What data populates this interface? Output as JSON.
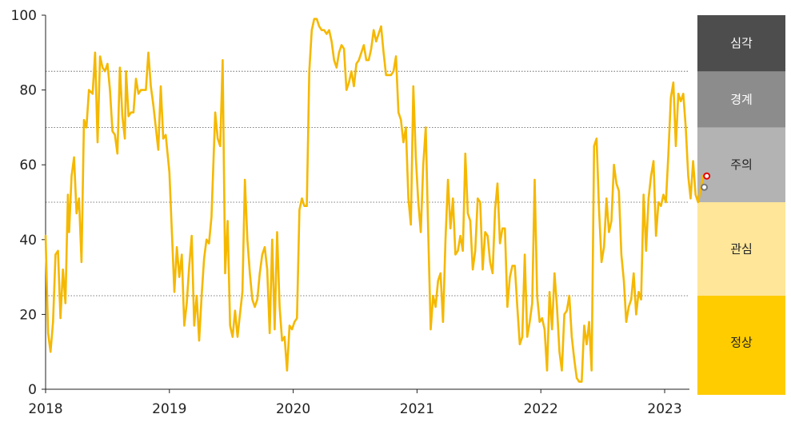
{
  "chart_data": {
    "type": "line",
    "xlim": [
      2018,
      2023.2
    ],
    "ylim": [
      0,
      100
    ],
    "y_ticks": [
      0,
      20,
      40,
      60,
      80,
      100
    ],
    "x_ticks": [
      "2018",
      "2019",
      "2020",
      "2021",
      "2022",
      "2023"
    ],
    "grid": "dotted horizontal lines at 25, 50, 70 and 85 only",
    "line_color": "#f5b800",
    "series": [
      {
        "values": [
          [
            2018.0,
            41
          ],
          [
            2018.02,
            15
          ],
          [
            2018.04,
            10
          ],
          [
            2018.06,
            18
          ],
          [
            2018.08,
            36
          ],
          [
            2018.1,
            37
          ],
          [
            2018.12,
            19
          ],
          [
            2018.14,
            32
          ],
          [
            2018.16,
            23
          ],
          [
            2018.18,
            52
          ],
          [
            2018.19,
            42
          ],
          [
            2018.21,
            57
          ],
          [
            2018.23,
            62
          ],
          [
            2018.25,
            47
          ],
          [
            2018.27,
            51
          ],
          [
            2018.29,
            34
          ],
          [
            2018.31,
            72
          ],
          [
            2018.33,
            70
          ],
          [
            2018.35,
            80
          ],
          [
            2018.38,
            79
          ],
          [
            2018.4,
            90
          ],
          [
            2018.42,
            66
          ],
          [
            2018.44,
            89
          ],
          [
            2018.46,
            86
          ],
          [
            2018.48,
            85
          ],
          [
            2018.5,
            87
          ],
          [
            2018.52,
            80
          ],
          [
            2018.54,
            69
          ],
          [
            2018.56,
            68
          ],
          [
            2018.58,
            63
          ],
          [
            2018.6,
            86
          ],
          [
            2018.62,
            73
          ],
          [
            2018.64,
            67
          ],
          [
            2018.65,
            85
          ],
          [
            2018.67,
            73
          ],
          [
            2018.69,
            74
          ],
          [
            2018.71,
            74
          ],
          [
            2018.73,
            83
          ],
          [
            2018.75,
            79
          ],
          [
            2018.77,
            80
          ],
          [
            2018.79,
            80
          ],
          [
            2018.81,
            80
          ],
          [
            2018.83,
            90
          ],
          [
            2018.85,
            81
          ],
          [
            2018.87,
            76
          ],
          [
            2018.89,
            70
          ],
          [
            2018.91,
            64
          ],
          [
            2018.93,
            81
          ],
          [
            2018.95,
            67
          ],
          [
            2018.97,
            68
          ],
          [
            2019.0,
            58
          ],
          [
            2019.02,
            42
          ],
          [
            2019.04,
            26
          ],
          [
            2019.06,
            38
          ],
          [
            2019.08,
            30
          ],
          [
            2019.1,
            36
          ],
          [
            2019.12,
            17
          ],
          [
            2019.14,
            23
          ],
          [
            2019.16,
            33
          ],
          [
            2019.18,
            41
          ],
          [
            2019.2,
            17
          ],
          [
            2019.22,
            25
          ],
          [
            2019.24,
            13
          ],
          [
            2019.26,
            25
          ],
          [
            2019.28,
            35
          ],
          [
            2019.3,
            40
          ],
          [
            2019.32,
            39
          ],
          [
            2019.34,
            46
          ],
          [
            2019.37,
            74
          ],
          [
            2019.39,
            67
          ],
          [
            2019.41,
            65
          ],
          [
            2019.43,
            88
          ],
          [
            2019.45,
            31
          ],
          [
            2019.47,
            45
          ],
          [
            2019.49,
            17
          ],
          [
            2019.51,
            14
          ],
          [
            2019.53,
            21
          ],
          [
            2019.55,
            14
          ],
          [
            2019.57,
            20
          ],
          [
            2019.59,
            26
          ],
          [
            2019.61,
            56
          ],
          [
            2019.63,
            40
          ],
          [
            2019.65,
            31
          ],
          [
            2019.67,
            24
          ],
          [
            2019.69,
            22
          ],
          [
            2019.71,
            24
          ],
          [
            2019.73,
            31
          ],
          [
            2019.75,
            36
          ],
          [
            2019.77,
            38
          ],
          [
            2019.79,
            32
          ],
          [
            2019.81,
            15
          ],
          [
            2019.83,
            40
          ],
          [
            2019.85,
            16
          ],
          [
            2019.87,
            42
          ],
          [
            2019.89,
            22
          ],
          [
            2019.91,
            13
          ],
          [
            2019.93,
            14
          ],
          [
            2019.95,
            5
          ],
          [
            2019.97,
            17
          ],
          [
            2019.99,
            16
          ],
          [
            2020.01,
            18
          ],
          [
            2020.03,
            19
          ],
          [
            2020.05,
            48
          ],
          [
            2020.07,
            51
          ],
          [
            2020.09,
            49
          ],
          [
            2020.11,
            49
          ],
          [
            2020.13,
            85
          ],
          [
            2020.15,
            96
          ],
          [
            2020.17,
            99
          ],
          [
            2020.19,
            99
          ],
          [
            2020.21,
            97
          ],
          [
            2020.23,
            96
          ],
          [
            2020.25,
            96
          ],
          [
            2020.27,
            95
          ],
          [
            2020.29,
            96
          ],
          [
            2020.31,
            93
          ],
          [
            2020.33,
            88
          ],
          [
            2020.35,
            86
          ],
          [
            2020.37,
            90
          ],
          [
            2020.39,
            92
          ],
          [
            2020.41,
            91
          ],
          [
            2020.43,
            80
          ],
          [
            2020.45,
            82
          ],
          [
            2020.47,
            85
          ],
          [
            2020.49,
            81
          ],
          [
            2020.51,
            87
          ],
          [
            2020.53,
            88
          ],
          [
            2020.55,
            90
          ],
          [
            2020.57,
            92
          ],
          [
            2020.59,
            88
          ],
          [
            2020.61,
            88
          ],
          [
            2020.63,
            91
          ],
          [
            2020.65,
            96
          ],
          [
            2020.67,
            93
          ],
          [
            2020.69,
            95
          ],
          [
            2020.71,
            97
          ],
          [
            2020.73,
            90
          ],
          [
            2020.75,
            84
          ],
          [
            2020.77,
            84
          ],
          [
            2020.79,
            84
          ],
          [
            2020.81,
            85
          ],
          [
            2020.83,
            89
          ],
          [
            2020.85,
            74
          ],
          [
            2020.87,
            72
          ],
          [
            2020.89,
            66
          ],
          [
            2020.91,
            70
          ],
          [
            2020.93,
            51
          ],
          [
            2020.95,
            44
          ],
          [
            2020.97,
            81
          ],
          [
            2020.99,
            62
          ],
          [
            2021.01,
            50
          ],
          [
            2021.03,
            42
          ],
          [
            2021.05,
            60
          ],
          [
            2021.07,
            70
          ],
          [
            2021.09,
            42
          ],
          [
            2021.11,
            16
          ],
          [
            2021.13,
            25
          ],
          [
            2021.15,
            22
          ],
          [
            2021.17,
            29
          ],
          [
            2021.19,
            31
          ],
          [
            2021.21,
            18
          ],
          [
            2021.23,
            40
          ],
          [
            2021.25,
            56
          ],
          [
            2021.27,
            43
          ],
          [
            2021.29,
            51
          ],
          [
            2021.31,
            36
          ],
          [
            2021.33,
            37
          ],
          [
            2021.35,
            41
          ],
          [
            2021.37,
            37
          ],
          [
            2021.39,
            63
          ],
          [
            2021.41,
            47
          ],
          [
            2021.43,
            45
          ],
          [
            2021.45,
            32
          ],
          [
            2021.47,
            37
          ],
          [
            2021.49,
            51
          ],
          [
            2021.51,
            50
          ],
          [
            2021.53,
            32
          ],
          [
            2021.55,
            42
          ],
          [
            2021.57,
            41
          ],
          [
            2021.59,
            34
          ],
          [
            2021.61,
            31
          ],
          [
            2021.63,
            48
          ],
          [
            2021.65,
            55
          ],
          [
            2021.67,
            39
          ],
          [
            2021.69,
            43
          ],
          [
            2021.71,
            43
          ],
          [
            2021.73,
            22
          ],
          [
            2021.75,
            30
          ],
          [
            2021.77,
            33
          ],
          [
            2021.79,
            33
          ],
          [
            2021.81,
            22
          ],
          [
            2021.83,
            12
          ],
          [
            2021.85,
            14
          ],
          [
            2021.87,
            36
          ],
          [
            2021.89,
            14
          ],
          [
            2021.91,
            18
          ],
          [
            2021.93,
            23
          ],
          [
            2021.95,
            56
          ],
          [
            2021.97,
            25
          ],
          [
            2021.99,
            18
          ],
          [
            2022.01,
            19
          ],
          [
            2022.03,
            16
          ],
          [
            2022.05,
            5
          ],
          [
            2022.07,
            26
          ],
          [
            2022.09,
            16
          ],
          [
            2022.11,
            31
          ],
          [
            2022.13,
            22
          ],
          [
            2022.15,
            10
          ],
          [
            2022.17,
            5
          ],
          [
            2022.19,
            20
          ],
          [
            2022.21,
            21
          ],
          [
            2022.23,
            25
          ],
          [
            2022.25,
            14
          ],
          [
            2022.27,
            8
          ],
          [
            2022.29,
            3
          ],
          [
            2022.31,
            2
          ],
          [
            2022.33,
            2
          ],
          [
            2022.35,
            17
          ],
          [
            2022.37,
            12
          ],
          [
            2022.39,
            18
          ],
          [
            2022.41,
            5
          ],
          [
            2022.43,
            65
          ],
          [
            2022.45,
            67
          ],
          [
            2022.47,
            48
          ],
          [
            2022.49,
            34
          ],
          [
            2022.51,
            38
          ],
          [
            2022.53,
            51
          ],
          [
            2022.55,
            42
          ],
          [
            2022.57,
            45
          ],
          [
            2022.59,
            60
          ],
          [
            2022.61,
            55
          ],
          [
            2022.63,
            53
          ],
          [
            2022.65,
            36
          ],
          [
            2022.67,
            29
          ],
          [
            2022.69,
            18
          ],
          [
            2022.71,
            22
          ],
          [
            2022.73,
            24
          ],
          [
            2022.75,
            31
          ],
          [
            2022.77,
            20
          ],
          [
            2022.79,
            26
          ],
          [
            2022.81,
            24
          ],
          [
            2022.83,
            52
          ],
          [
            2022.85,
            37
          ],
          [
            2022.87,
            51
          ],
          [
            2022.89,
            57
          ],
          [
            2022.91,
            61
          ],
          [
            2022.93,
            41
          ],
          [
            2022.95,
            50
          ],
          [
            2022.97,
            49
          ],
          [
            2022.99,
            52
          ],
          [
            2023.01,
            50
          ],
          [
            2023.03,
            63
          ],
          [
            2023.05,
            78
          ],
          [
            2023.07,
            82
          ],
          [
            2023.09,
            65
          ],
          [
            2023.11,
            79
          ],
          [
            2023.13,
            77
          ],
          [
            2023.15,
            79
          ],
          [
            2023.17,
            70
          ],
          [
            2023.19,
            57
          ],
          [
            2023.21,
            51
          ],
          [
            2023.23,
            61
          ],
          [
            2023.25,
            52
          ],
          [
            2023.27,
            50
          ],
          [
            2023.29,
            53
          ],
          [
            2023.31,
            57
          ],
          [
            2023.33,
            57
          ]
        ]
      }
    ],
    "markers": [
      {
        "x": 2023.32,
        "y": 54,
        "color": "#777777"
      },
      {
        "x": 2023.34,
        "y": 57,
        "color": "#e60000"
      }
    ],
    "bands": [
      {
        "label": "심각",
        "from": 85,
        "to": 100,
        "color": "#4d4d4d",
        "text_color": "#ffffff"
      },
      {
        "label": "경계",
        "from": 70,
        "to": 85,
        "color": "#8c8c8c",
        "text_color": "#ffffff"
      },
      {
        "label": "주의",
        "from": 50,
        "to": 70,
        "color": "#b3b3b3",
        "text_color": "#222222"
      },
      {
        "label": "관심",
        "from": 25,
        "to": 50,
        "color": "#ffe699",
        "text_color": "#222222"
      },
      {
        "label": "정상",
        "from": 0,
        "to": 25,
        "color": "#ffcc00",
        "text_color": "#222222"
      }
    ]
  }
}
